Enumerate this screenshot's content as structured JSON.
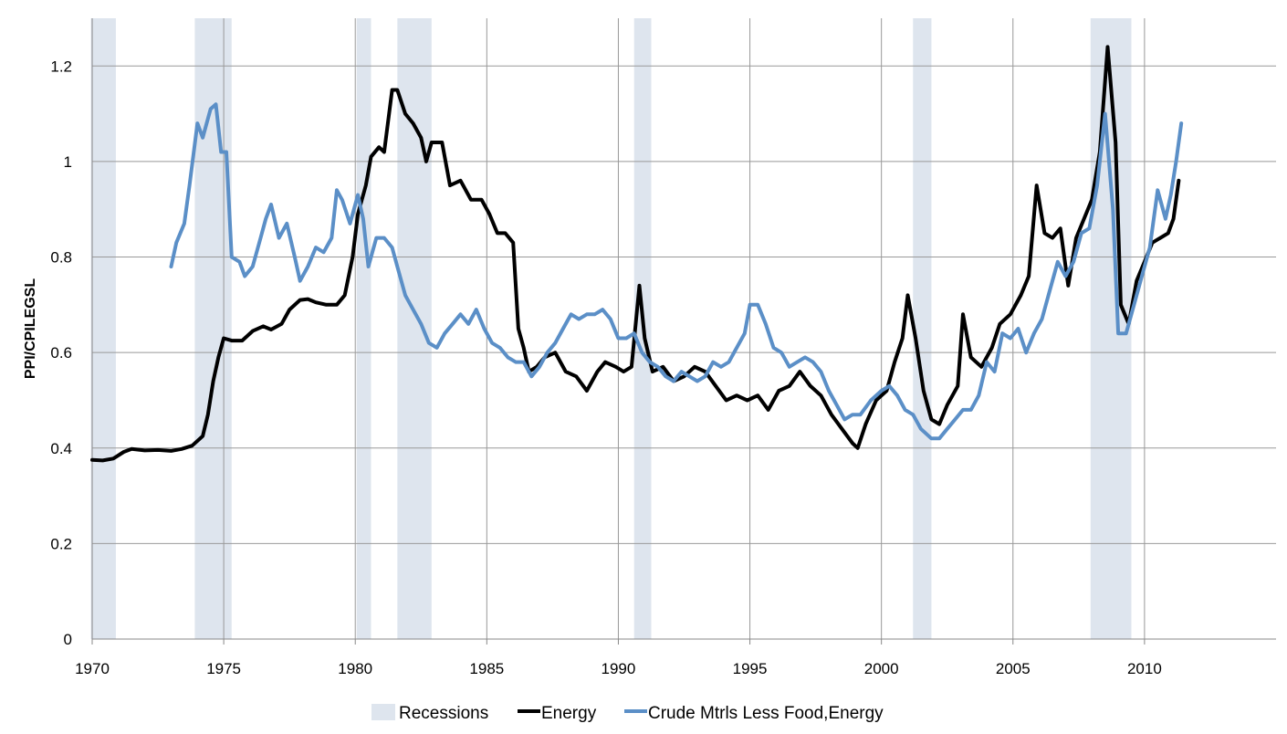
{
  "chart_data": {
    "type": "line",
    "title": "",
    "xlabel": "",
    "ylabel": "PPI/CPILEGSL",
    "xlim": [
      1970,
      2015
    ],
    "ylim": [
      0,
      1.3
    ],
    "x_ticks": [
      "1970",
      "1975",
      "1980",
      "1985",
      "1990",
      "1995",
      "2000",
      "2005",
      "2010"
    ],
    "y_ticks": [
      "0",
      "0.2",
      "0.4",
      "0.6",
      "0.8",
      "1",
      "1.2"
    ],
    "grid": true,
    "legend_position": "bottom",
    "legend": [
      "Recessions",
      "Energy",
      "Crude Mtrls Less Food,Energy"
    ],
    "recessions": [
      [
        1969.95,
        1970.9
      ],
      [
        1973.9,
        1975.3
      ],
      [
        1980.05,
        1980.6
      ],
      [
        1981.6,
        1982.9
      ],
      [
        1990.6,
        1991.25
      ],
      [
        2001.2,
        2001.9
      ],
      [
        2007.95,
        2009.5
      ]
    ],
    "series": [
      {
        "name": "Energy",
        "color": "#000000",
        "points": [
          [
            1970.0,
            0.375
          ],
          [
            1970.4,
            0.374
          ],
          [
            1970.8,
            0.378
          ],
          [
            1971.2,
            0.392
          ],
          [
            1971.5,
            0.398
          ],
          [
            1972.0,
            0.395
          ],
          [
            1972.5,
            0.396
          ],
          [
            1973.0,
            0.394
          ],
          [
            1973.4,
            0.398
          ],
          [
            1973.8,
            0.405
          ],
          [
            1974.2,
            0.425
          ],
          [
            1974.4,
            0.47
          ],
          [
            1974.6,
            0.54
          ],
          [
            1974.8,
            0.59
          ],
          [
            1975.0,
            0.63
          ],
          [
            1975.3,
            0.625
          ],
          [
            1975.7,
            0.625
          ],
          [
            1976.1,
            0.645
          ],
          [
            1976.5,
            0.655
          ],
          [
            1976.8,
            0.648
          ],
          [
            1977.2,
            0.66
          ],
          [
            1977.5,
            0.69
          ],
          [
            1977.9,
            0.71
          ],
          [
            1978.2,
            0.712
          ],
          [
            1978.5,
            0.705
          ],
          [
            1978.9,
            0.7
          ],
          [
            1979.3,
            0.7
          ],
          [
            1979.6,
            0.72
          ],
          [
            1979.9,
            0.8
          ],
          [
            1980.1,
            0.89
          ],
          [
            1980.4,
            0.95
          ],
          [
            1980.6,
            1.01
          ],
          [
            1980.9,
            1.03
          ],
          [
            1981.1,
            1.02
          ],
          [
            1981.4,
            1.15
          ],
          [
            1981.6,
            1.15
          ],
          [
            1981.9,
            1.1
          ],
          [
            1982.2,
            1.08
          ],
          [
            1982.5,
            1.05
          ],
          [
            1982.7,
            1.0
          ],
          [
            1982.9,
            1.04
          ],
          [
            1983.3,
            1.04
          ],
          [
            1983.6,
            0.95
          ],
          [
            1984.0,
            0.96
          ],
          [
            1984.4,
            0.92
          ],
          [
            1984.8,
            0.92
          ],
          [
            1985.1,
            0.89
          ],
          [
            1985.4,
            0.85
          ],
          [
            1985.7,
            0.85
          ],
          [
            1986.0,
            0.83
          ],
          [
            1986.2,
            0.65
          ],
          [
            1986.4,
            0.61
          ],
          [
            1986.6,
            0.56
          ],
          [
            1986.9,
            0.57
          ],
          [
            1987.2,
            0.59
          ],
          [
            1987.6,
            0.6
          ],
          [
            1988.0,
            0.56
          ],
          [
            1988.4,
            0.55
          ],
          [
            1988.8,
            0.52
          ],
          [
            1989.2,
            0.56
          ],
          [
            1989.5,
            0.58
          ],
          [
            1989.9,
            0.57
          ],
          [
            1990.2,
            0.56
          ],
          [
            1990.5,
            0.57
          ],
          [
            1990.8,
            0.74
          ],
          [
            1991.0,
            0.63
          ],
          [
            1991.3,
            0.56
          ],
          [
            1991.7,
            0.57
          ],
          [
            1992.1,
            0.54
          ],
          [
            1992.5,
            0.55
          ],
          [
            1992.9,
            0.57
          ],
          [
            1993.3,
            0.56
          ],
          [
            1993.7,
            0.53
          ],
          [
            1994.1,
            0.5
          ],
          [
            1994.5,
            0.51
          ],
          [
            1994.9,
            0.5
          ],
          [
            1995.3,
            0.51
          ],
          [
            1995.7,
            0.48
          ],
          [
            1996.1,
            0.52
          ],
          [
            1996.5,
            0.53
          ],
          [
            1996.9,
            0.56
          ],
          [
            1997.3,
            0.53
          ],
          [
            1997.7,
            0.51
          ],
          [
            1998.1,
            0.47
          ],
          [
            1998.5,
            0.44
          ],
          [
            1998.9,
            0.41
          ],
          [
            1999.1,
            0.4
          ],
          [
            1999.4,
            0.45
          ],
          [
            1999.8,
            0.5
          ],
          [
            2000.2,
            0.52
          ],
          [
            2000.5,
            0.58
          ],
          [
            2000.8,
            0.63
          ],
          [
            2001.0,
            0.72
          ],
          [
            2001.3,
            0.63
          ],
          [
            2001.6,
            0.52
          ],
          [
            2001.9,
            0.46
          ],
          [
            2002.2,
            0.45
          ],
          [
            2002.5,
            0.49
          ],
          [
            2002.9,
            0.53
          ],
          [
            2003.1,
            0.68
          ],
          [
            2003.4,
            0.59
          ],
          [
            2003.8,
            0.57
          ],
          [
            2004.2,
            0.61
          ],
          [
            2004.5,
            0.66
          ],
          [
            2004.9,
            0.68
          ],
          [
            2005.3,
            0.72
          ],
          [
            2005.6,
            0.76
          ],
          [
            2005.9,
            0.95
          ],
          [
            2006.2,
            0.85
          ],
          [
            2006.5,
            0.84
          ],
          [
            2006.8,
            0.86
          ],
          [
            2007.1,
            0.74
          ],
          [
            2007.4,
            0.84
          ],
          [
            2007.7,
            0.88
          ],
          [
            2008.0,
            0.92
          ],
          [
            2008.3,
            1.02
          ],
          [
            2008.6,
            1.24
          ],
          [
            2008.9,
            1.04
          ],
          [
            2009.1,
            0.7
          ],
          [
            2009.4,
            0.66
          ],
          [
            2009.7,
            0.75
          ],
          [
            2010.0,
            0.79
          ],
          [
            2010.3,
            0.83
          ],
          [
            2010.6,
            0.84
          ],
          [
            2010.9,
            0.85
          ],
          [
            2011.1,
            0.88
          ],
          [
            2011.3,
            0.96
          ]
        ]
      },
      {
        "name": "Crude Mtrls Less Food,Energy",
        "color": "#5b8fc7",
        "points": [
          [
            1973.0,
            0.78
          ],
          [
            1973.2,
            0.83
          ],
          [
            1973.5,
            0.87
          ],
          [
            1973.7,
            0.95
          ],
          [
            1974.0,
            1.08
          ],
          [
            1974.2,
            1.05
          ],
          [
            1974.5,
            1.11
          ],
          [
            1974.7,
            1.12
          ],
          [
            1974.9,
            1.02
          ],
          [
            1975.1,
            1.02
          ],
          [
            1975.3,
            0.8
          ],
          [
            1975.6,
            0.79
          ],
          [
            1975.8,
            0.76
          ],
          [
            1976.1,
            0.78
          ],
          [
            1976.4,
            0.84
          ],
          [
            1976.6,
            0.88
          ],
          [
            1976.8,
            0.91
          ],
          [
            1977.1,
            0.84
          ],
          [
            1977.4,
            0.87
          ],
          [
            1977.7,
            0.8
          ],
          [
            1977.9,
            0.75
          ],
          [
            1978.2,
            0.78
          ],
          [
            1978.5,
            0.82
          ],
          [
            1978.8,
            0.81
          ],
          [
            1979.1,
            0.84
          ],
          [
            1979.3,
            0.94
          ],
          [
            1979.5,
            0.92
          ],
          [
            1979.8,
            0.87
          ],
          [
            1980.1,
            0.93
          ],
          [
            1980.3,
            0.88
          ],
          [
            1980.5,
            0.78
          ],
          [
            1980.8,
            0.84
          ],
          [
            1981.1,
            0.84
          ],
          [
            1981.4,
            0.82
          ],
          [
            1981.6,
            0.78
          ],
          [
            1981.9,
            0.72
          ],
          [
            1982.2,
            0.69
          ],
          [
            1982.5,
            0.66
          ],
          [
            1982.8,
            0.62
          ],
          [
            1983.1,
            0.61
          ],
          [
            1983.4,
            0.64
          ],
          [
            1983.7,
            0.66
          ],
          [
            1984.0,
            0.68
          ],
          [
            1984.3,
            0.66
          ],
          [
            1984.6,
            0.69
          ],
          [
            1984.9,
            0.65
          ],
          [
            1985.2,
            0.62
          ],
          [
            1985.5,
            0.61
          ],
          [
            1985.8,
            0.59
          ],
          [
            1986.1,
            0.58
          ],
          [
            1986.4,
            0.58
          ],
          [
            1986.7,
            0.55
          ],
          [
            1987.0,
            0.57
          ],
          [
            1987.3,
            0.6
          ],
          [
            1987.6,
            0.62
          ],
          [
            1987.9,
            0.65
          ],
          [
            1988.2,
            0.68
          ],
          [
            1988.5,
            0.67
          ],
          [
            1988.8,
            0.68
          ],
          [
            1989.1,
            0.68
          ],
          [
            1989.4,
            0.69
          ],
          [
            1989.7,
            0.67
          ],
          [
            1990.0,
            0.63
          ],
          [
            1990.3,
            0.63
          ],
          [
            1990.6,
            0.64
          ],
          [
            1990.9,
            0.6
          ],
          [
            1991.2,
            0.58
          ],
          [
            1991.5,
            0.57
          ],
          [
            1991.8,
            0.55
          ],
          [
            1992.1,
            0.54
          ],
          [
            1992.4,
            0.56
          ],
          [
            1992.7,
            0.55
          ],
          [
            1993.0,
            0.54
          ],
          [
            1993.3,
            0.55
          ],
          [
            1993.6,
            0.58
          ],
          [
            1993.9,
            0.57
          ],
          [
            1994.2,
            0.58
          ],
          [
            1994.5,
            0.61
          ],
          [
            1994.8,
            0.64
          ],
          [
            1995.0,
            0.7
          ],
          [
            1995.3,
            0.7
          ],
          [
            1995.6,
            0.66
          ],
          [
            1995.9,
            0.61
          ],
          [
            1996.2,
            0.6
          ],
          [
            1996.5,
            0.57
          ],
          [
            1996.8,
            0.58
          ],
          [
            1997.1,
            0.59
          ],
          [
            1997.4,
            0.58
          ],
          [
            1997.7,
            0.56
          ],
          [
            1998.0,
            0.52
          ],
          [
            1998.3,
            0.49
          ],
          [
            1998.6,
            0.46
          ],
          [
            1998.9,
            0.47
          ],
          [
            1999.2,
            0.47
          ],
          [
            1999.6,
            0.5
          ],
          [
            2000.0,
            0.52
          ],
          [
            2000.3,
            0.53
          ],
          [
            2000.6,
            0.51
          ],
          [
            2000.9,
            0.48
          ],
          [
            2001.2,
            0.47
          ],
          [
            2001.5,
            0.44
          ],
          [
            2001.9,
            0.42
          ],
          [
            2002.2,
            0.42
          ],
          [
            2002.5,
            0.44
          ],
          [
            2002.8,
            0.46
          ],
          [
            2003.1,
            0.48
          ],
          [
            2003.4,
            0.48
          ],
          [
            2003.7,
            0.51
          ],
          [
            2004.0,
            0.58
          ],
          [
            2004.3,
            0.56
          ],
          [
            2004.6,
            0.64
          ],
          [
            2004.9,
            0.63
          ],
          [
            2005.2,
            0.65
          ],
          [
            2005.5,
            0.6
          ],
          [
            2005.8,
            0.64
          ],
          [
            2006.1,
            0.67
          ],
          [
            2006.4,
            0.73
          ],
          [
            2006.7,
            0.79
          ],
          [
            2007.0,
            0.76
          ],
          [
            2007.3,
            0.79
          ],
          [
            2007.6,
            0.85
          ],
          [
            2007.9,
            0.86
          ],
          [
            2008.2,
            0.95
          ],
          [
            2008.5,
            1.1
          ],
          [
            2008.8,
            0.9
          ],
          [
            2009.0,
            0.64
          ],
          [
            2009.3,
            0.64
          ],
          [
            2009.6,
            0.7
          ],
          [
            2009.9,
            0.76
          ],
          [
            2010.2,
            0.82
          ],
          [
            2010.5,
            0.94
          ],
          [
            2010.8,
            0.88
          ],
          [
            2011.0,
            0.93
          ],
          [
            2011.2,
            1.0
          ],
          [
            2011.4,
            1.08
          ]
        ]
      }
    ]
  },
  "colors": {
    "recession": "#dee5ee",
    "energy": "#000000",
    "crude": "#5b8fc7",
    "grid": "#999999",
    "axis": "#888888"
  }
}
